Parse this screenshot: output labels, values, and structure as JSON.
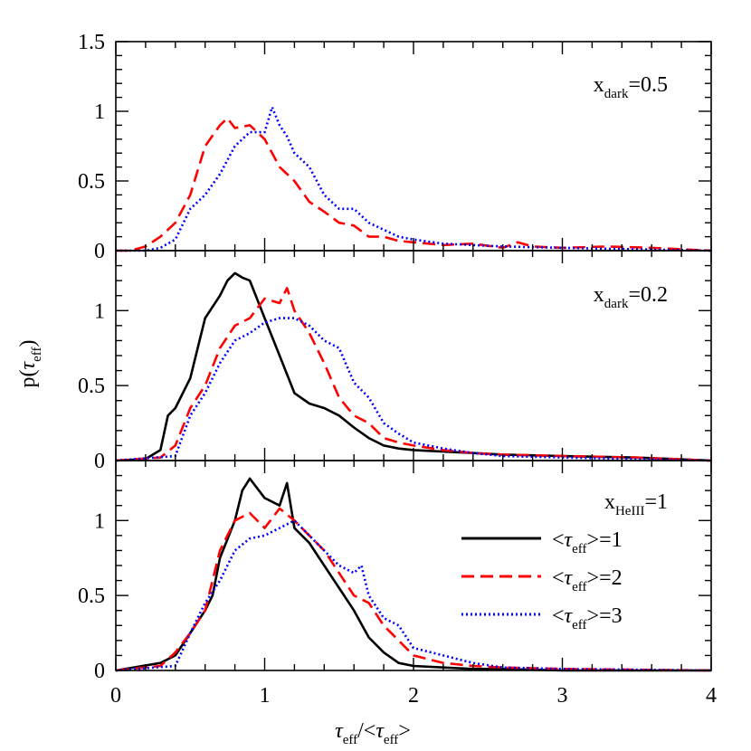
{
  "chart_data": {
    "type": "line",
    "xlabel": "τ_eff/<τ_eff>",
    "ylabel": "p(τ_eff)",
    "xlim": [
      0,
      4
    ],
    "xticks": [
      "0",
      "1",
      "2",
      "3",
      "4"
    ],
    "legend": {
      "placement": "lower panel, right",
      "entries": [
        {
          "text": "<τ_eff>=1",
          "color": "#000000",
          "dash": "solid"
        },
        {
          "text": "<τ_eff>=2",
          "color": "#ff0000",
          "dash": "dashed"
        },
        {
          "text": "<τ_eff>=3",
          "color": "#0000ff",
          "dash": "dotted"
        }
      ]
    },
    "panels": [
      {
        "annotation": "x_dark=0.5",
        "ylim": [
          0,
          1.5
        ],
        "yticks": [
          "0",
          "0.5",
          "1",
          "1.5"
        ],
        "series": [
          {
            "key": "s2",
            "color": "#ff0000",
            "style": "dashed",
            "x": [
              0,
              0.1,
              0.2,
              0.3,
              0.4,
              0.5,
              0.6,
              0.7,
              0.75,
              0.8,
              0.9,
              1.0,
              1.1,
              1.2,
              1.3,
              1.4,
              1.5,
              1.6,
              1.7,
              1.8,
              1.9,
              2.0,
              2.2,
              2.4,
              2.6,
              2.7,
              2.8,
              3.0,
              3.3,
              3.6,
              4.0
            ],
            "y": [
              0,
              0,
              0.03,
              0.1,
              0.2,
              0.4,
              0.75,
              0.9,
              0.95,
              0.88,
              0.9,
              0.8,
              0.6,
              0.5,
              0.35,
              0.28,
              0.2,
              0.18,
              0.1,
              0.1,
              0.07,
              0.06,
              0.04,
              0.05,
              0.02,
              0.06,
              0.03,
              0.02,
              0.03,
              0.02,
              0
            ]
          },
          {
            "key": "s3",
            "color": "#0000ff",
            "style": "dotted",
            "x": [
              0,
              0.2,
              0.3,
              0.4,
              0.5,
              0.6,
              0.7,
              0.8,
              0.9,
              1.0,
              1.05,
              1.1,
              1.15,
              1.2,
              1.3,
              1.4,
              1.5,
              1.6,
              1.7,
              1.8,
              1.9,
              2.0,
              2.2,
              2.4,
              2.6,
              3.0,
              3.5,
              4.0
            ],
            "y": [
              0,
              0,
              0.02,
              0.08,
              0.3,
              0.4,
              0.55,
              0.75,
              0.85,
              0.85,
              1.03,
              0.9,
              0.82,
              0.7,
              0.6,
              0.4,
              0.3,
              0.3,
              0.2,
              0.15,
              0.1,
              0.08,
              0.05,
              0.04,
              0.03,
              0.02,
              0.01,
              0
            ]
          }
        ]
      },
      {
        "annotation": "x_dark=0.2",
        "ylim": [
          0,
          1.4
        ],
        "yticks": [
          "0",
          "0.5",
          "1"
        ],
        "series": [
          {
            "key": "s1",
            "color": "#000000",
            "style": "solid",
            "x": [
              0,
              0.2,
              0.3,
              0.35,
              0.4,
              0.5,
              0.55,
              0.6,
              0.7,
              0.75,
              0.8,
              0.85,
              0.9,
              1.0,
              1.1,
              1.2,
              1.3,
              1.4,
              1.5,
              1.6,
              1.7,
              1.8,
              1.9,
              2.0,
              2.2,
              2.4,
              2.6,
              3.0,
              3.5,
              4.0
            ],
            "y": [
              0,
              0.01,
              0.07,
              0.3,
              0.35,
              0.55,
              0.75,
              0.95,
              1.1,
              1.2,
              1.25,
              1.22,
              1.2,
              0.95,
              0.7,
              0.45,
              0.38,
              0.35,
              0.3,
              0.22,
              0.15,
              0.1,
              0.08,
              0.07,
              0.06,
              0.05,
              0.04,
              0.03,
              0.02,
              0
            ]
          },
          {
            "key": "s2",
            "color": "#ff0000",
            "style": "dashed",
            "x": [
              0,
              0.3,
              0.4,
              0.5,
              0.6,
              0.7,
              0.8,
              0.9,
              1.0,
              1.1,
              1.15,
              1.2,
              1.3,
              1.4,
              1.5,
              1.6,
              1.7,
              1.8,
              1.9,
              2.0,
              2.2,
              2.4,
              2.6,
              3.0,
              3.5,
              4.0
            ],
            "y": [
              0,
              0.02,
              0.1,
              0.35,
              0.5,
              0.75,
              0.9,
              0.95,
              1.08,
              1.05,
              1.15,
              1.0,
              0.85,
              0.65,
              0.42,
              0.3,
              0.25,
              0.15,
              0.12,
              0.1,
              0.07,
              0.05,
              0.04,
              0.03,
              0.02,
              0
            ]
          },
          {
            "key": "s3",
            "color": "#0000ff",
            "style": "dotted",
            "x": [
              0,
              0.4,
              0.5,
              0.6,
              0.7,
              0.8,
              0.9,
              1.0,
              1.1,
              1.2,
              1.3,
              1.4,
              1.5,
              1.6,
              1.7,
              1.8,
              1.9,
              2.0,
              2.2,
              2.4,
              2.6,
              3.0,
              3.5,
              4.0
            ],
            "y": [
              0,
              0.03,
              0.3,
              0.45,
              0.65,
              0.8,
              0.85,
              0.92,
              0.95,
              0.95,
              0.9,
              0.8,
              0.75,
              0.52,
              0.42,
              0.25,
              0.18,
              0.12,
              0.08,
              0.05,
              0.03,
              0.02,
              0.01,
              0
            ]
          }
        ]
      },
      {
        "annotation": "x_HeIII=1",
        "ylim": [
          0,
          1.4
        ],
        "yticks": [
          "0",
          "0.5",
          "1"
        ],
        "series": [
          {
            "key": "s1",
            "color": "#000000",
            "style": "solid",
            "x": [
              0,
              0.3,
              0.4,
              0.5,
              0.6,
              0.65,
              0.7,
              0.8,
              0.85,
              0.9,
              1.0,
              1.1,
              1.15,
              1.2,
              1.3,
              1.4,
              1.5,
              1.6,
              1.7,
              1.8,
              1.9,
              2.0,
              2.2,
              2.4,
              2.6,
              3.0,
              4.0
            ],
            "y": [
              0,
              0.05,
              0.1,
              0.25,
              0.4,
              0.5,
              0.75,
              1.0,
              1.2,
              1.28,
              1.15,
              1.1,
              1.25,
              0.95,
              0.85,
              0.7,
              0.55,
              0.4,
              0.22,
              0.12,
              0.05,
              0.03,
              0.02,
              0.01,
              0.01,
              0,
              0
            ]
          },
          {
            "key": "s2",
            "color": "#ff0000",
            "style": "dashed",
            "x": [
              0,
              0.3,
              0.4,
              0.5,
              0.6,
              0.7,
              0.8,
              0.9,
              1.0,
              1.1,
              1.2,
              1.3,
              1.4,
              1.5,
              1.6,
              1.7,
              1.8,
              1.9,
              2.0,
              2.2,
              2.4,
              2.6,
              3.0,
              4.0
            ],
            "y": [
              0,
              0.03,
              0.12,
              0.25,
              0.4,
              0.8,
              1.0,
              1.05,
              0.95,
              1.08,
              1.0,
              0.9,
              0.8,
              0.65,
              0.5,
              0.45,
              0.3,
              0.2,
              0.1,
              0.05,
              0.03,
              0.02,
              0.01,
              0
            ]
          },
          {
            "key": "s3",
            "color": "#0000ff",
            "style": "dotted",
            "x": [
              0,
              0.4,
              0.5,
              0.6,
              0.7,
              0.8,
              0.9,
              1.0,
              1.1,
              1.2,
              1.3,
              1.4,
              1.5,
              1.6,
              1.65,
              1.7,
              1.8,
              1.9,
              2.0,
              2.2,
              2.4,
              2.6,
              3.0,
              4.0
            ],
            "y": [
              0,
              0.03,
              0.25,
              0.45,
              0.6,
              0.8,
              0.88,
              0.9,
              0.95,
              1.0,
              0.9,
              0.8,
              0.7,
              0.65,
              0.7,
              0.5,
              0.35,
              0.3,
              0.15,
              0.1,
              0.05,
              0.02,
              0.01,
              0
            ]
          }
        ]
      }
    ]
  }
}
